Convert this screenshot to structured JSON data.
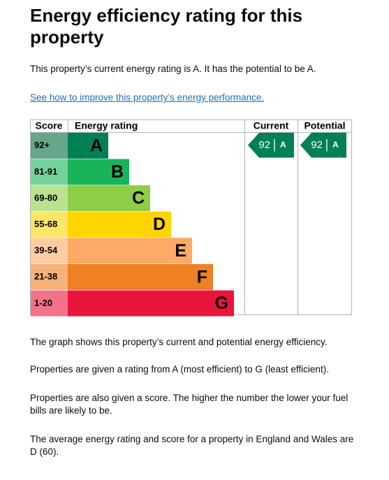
{
  "title": "Energy efficiency rating for this property",
  "summary": "This property’s current energy rating is A. It has the potential to be A.",
  "link": "See how to improve this property’s energy performance.",
  "rating_table": {
    "headers": [
      "Score",
      "Energy rating",
      "Current",
      "Potential"
    ],
    "bands": [
      {
        "score": "92+",
        "letter": "A",
        "color": "#008054",
        "score_color": "#66a68b"
      },
      {
        "score": "81-91",
        "letter": "B",
        "color": "#19b459",
        "score_color": "#75d29b"
      },
      {
        "score": "69-80",
        "letter": "C",
        "color": "#8dce46",
        "score_color": "#bbe290"
      },
      {
        "score": "55-68",
        "letter": "D",
        "color": "#ffd500",
        "score_color": "#ffe566"
      },
      {
        "score": "39-54",
        "letter": "E",
        "color": "#fcaa65",
        "score_color": "#fdcca3"
      },
      {
        "score": "21-38",
        "letter": "F",
        "color": "#ef8023",
        "score_color": "#f5b37b"
      },
      {
        "score": "1-20",
        "letter": "G",
        "color": "#e9153b",
        "score_color": "#f27389"
      }
    ],
    "current": {
      "score": 92,
      "letter": "A"
    },
    "potential": {
      "score": 92,
      "letter": "A"
    }
  },
  "paragraphs": [
    "The graph shows this property’s current and potential energy efficiency.",
    "Properties are given a rating from A (most efficient) to G (least efficient).",
    "Properties are also given a score. The higher the number the lower your fuel bills are likely to be.",
    "The average energy rating and score for a property in England and Wales are D (60)."
  ]
}
